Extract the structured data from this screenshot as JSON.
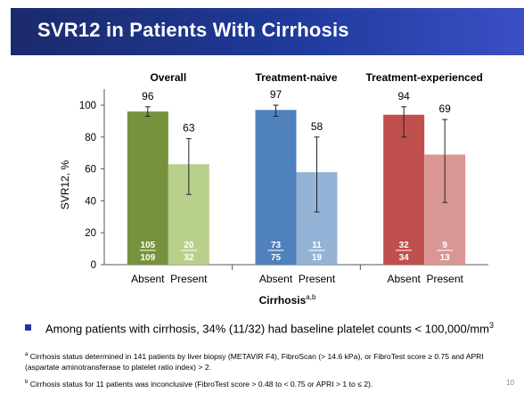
{
  "slide": {
    "title": "SVR12 in Patients With Cirrhosis",
    "page_number": "10",
    "colors": {
      "title_bar": "#1f3a9b",
      "bullet": "#1f3a9b"
    }
  },
  "chart_data": {
    "type": "bar",
    "ylabel": "SVR12, %",
    "xlabel": "Cirrhosis",
    "xlabel_superscript": "a,b",
    "ylim": [
      0,
      100
    ],
    "yticks": [
      0,
      20,
      40,
      60,
      80,
      100
    ],
    "categories": [
      "Absent",
      "Present"
    ],
    "groups": [
      {
        "label": "Overall",
        "colors": [
          "#76923c",
          "#b8d08c"
        ],
        "bars": [
          {
            "category": "Absent",
            "value": 96,
            "error_low": 93,
            "error_high": 99,
            "numerator": "105",
            "denominator": "109"
          },
          {
            "category": "Present",
            "value": 63,
            "error_low": 44,
            "error_high": 79,
            "numerator": "20",
            "denominator": "32"
          }
        ]
      },
      {
        "label": "Treatment-naive",
        "colors": [
          "#4f81bd",
          "#95b3d7"
        ],
        "bars": [
          {
            "category": "Absent",
            "value": 97,
            "error_low": 93,
            "error_high": 100,
            "numerator": "73",
            "denominator": "75"
          },
          {
            "category": "Present",
            "value": 58,
            "error_low": 33,
            "error_high": 80,
            "numerator": "11",
            "denominator": "19"
          }
        ]
      },
      {
        "label": "Treatment-experienced",
        "colors": [
          "#c0504d",
          "#da9694"
        ],
        "bars": [
          {
            "category": "Absent",
            "value": 94,
            "error_low": 80,
            "error_high": 99,
            "numerator": "32",
            "denominator": "34"
          },
          {
            "category": "Present",
            "value": 69,
            "error_low": 39,
            "error_high": 91,
            "numerator": "9",
            "denominator": "13"
          }
        ]
      }
    ]
  },
  "bullet": {
    "text": "Among patients with cirrhosis, 34% (11/32) had baseline platelet counts < 100,000/mm",
    "superscript": "3"
  },
  "footnotes": [
    {
      "marker": "a",
      "text": "Cirrhosis status determined in 141 patients by liver biopsy (METAVIR F4), FibroScan (> 14.6 kPa), or FibroTest score ≥ 0.75 and APRI (aspartate aminotransferase to platelet ratio index) > 2."
    },
    {
      "marker": "b",
      "text": "Cirrhosis status for 11 patients was inconclusive (FibroTest score > 0.48 to < 0.75 or APRI > 1 to ≤ 2)."
    }
  ]
}
